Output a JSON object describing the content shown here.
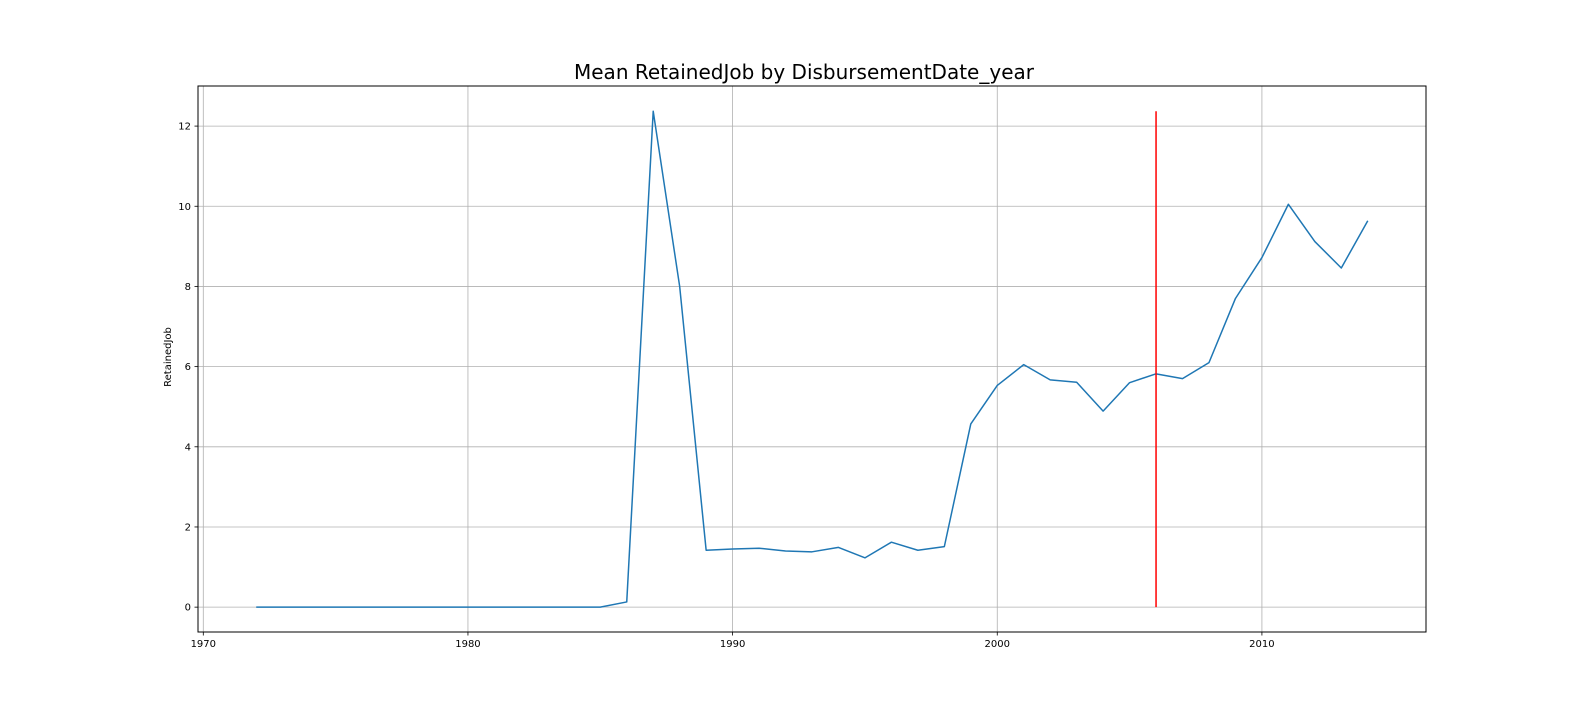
{
  "chart_data": {
    "type": "line",
    "title": "Mean RetainedJob by DisbursementDate_year",
    "xlabel": "",
    "ylabel": "RetainedJob",
    "xlim": [
      1969.8,
      2016.2
    ],
    "ylim": [
      -0.62,
      13.0
    ],
    "xticks": [
      1970,
      1980,
      1990,
      2000,
      2010
    ],
    "yticks": [
      0,
      2,
      4,
      6,
      8,
      10,
      12
    ],
    "grid": true,
    "series": [
      {
        "color": "#1f77b4",
        "x": [
          1972,
          1973,
          1974,
          1975,
          1976,
          1977,
          1978,
          1979,
          1980,
          1981,
          1982,
          1983,
          1984,
          1985,
          1986,
          1987,
          1988,
          1989,
          1990,
          1991,
          1992,
          1993,
          1994,
          1995,
          1996,
          1997,
          1998,
          1999,
          2000,
          2001,
          2002,
          2003,
          2004,
          2005,
          2006,
          2007,
          2008,
          2009,
          2010,
          2011,
          2012,
          2013,
          2014
        ],
        "values": [
          0,
          0,
          0,
          0,
          0,
          0,
          0,
          0,
          0,
          0,
          0,
          0,
          0,
          0,
          0.13,
          12.37,
          8.0,
          1.42,
          1.45,
          1.47,
          1.4,
          1.38,
          1.49,
          1.23,
          1.62,
          1.42,
          1.51,
          4.57,
          5.53,
          6.05,
          5.67,
          5.61,
          4.89,
          5.6,
          5.82,
          5.7,
          6.1,
          7.7,
          8.72,
          10.05,
          9.12,
          8.46,
          9.64
        ]
      }
    ],
    "vertical_line": {
      "x": 2006,
      "y_from": 0,
      "y_to": 12.37,
      "color": "#ff0000"
    }
  }
}
